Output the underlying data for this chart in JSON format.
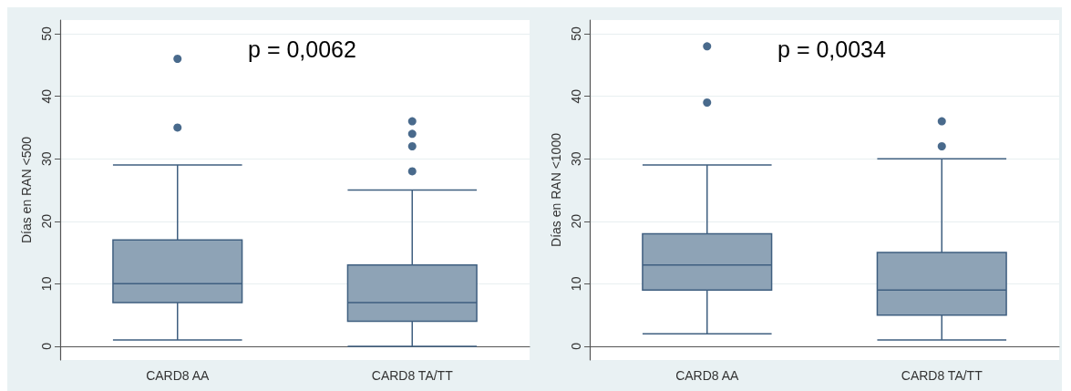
{
  "chart_data": [
    {
      "type": "box",
      "ylabel": "Días en RAN <500",
      "annotations": [
        "p = 0,0062"
      ],
      "categories": [
        "CARD8 AA",
        "CARD8 TA/TT"
      ],
      "color": "#8ea3b6",
      "boxes": [
        {
          "low": 1,
          "q1": 7,
          "median": 10,
          "q3": 17,
          "high": 29,
          "outliers": [
            35,
            46
          ]
        },
        {
          "low": 0,
          "q1": 4,
          "median": 7,
          "q3": 13,
          "high": 25,
          "outliers": [
            28,
            32,
            34,
            36
          ]
        }
      ],
      "ylim": [
        -2.2,
        52.2
      ],
      "yticks": [
        0,
        10,
        20,
        30,
        40,
        50
      ],
      "grid": "y"
    },
    {
      "type": "box",
      "ylabel": "Días en RAN <1000",
      "annotations": [
        "p = 0,0034"
      ],
      "categories": [
        "CARD8 AA",
        "CARD8 TA/TT"
      ],
      "color": "#8ea3b6",
      "boxes": [
        {
          "low": 2,
          "q1": 9,
          "median": 13,
          "q3": 18,
          "high": 29,
          "outliers": [
            39,
            48
          ]
        },
        {
          "low": 1,
          "q1": 5,
          "median": 9,
          "q3": 15,
          "high": 30,
          "outliers": [
            32,
            36
          ]
        }
      ],
      "ylim": [
        -2.2,
        52.2
      ],
      "yticks": [
        0,
        10,
        20,
        30,
        40,
        50
      ],
      "grid": "y"
    }
  ]
}
